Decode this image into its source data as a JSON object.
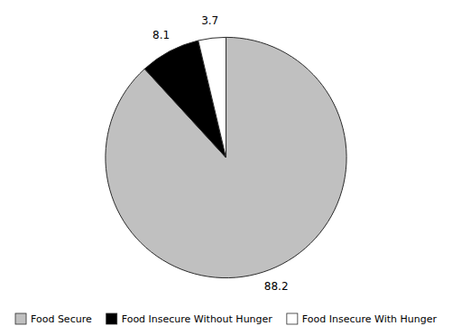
{
  "chart_data": {
    "type": "pie",
    "categories": [
      "Food Secure",
      "Food Insecure Without Hunger",
      "Food Insecure With Hunger"
    ],
    "values": [
      88.2,
      8.1,
      3.7
    ],
    "colors": [
      "#c0c0c0",
      "#000000",
      "#ffffff"
    ],
    "data_labels": true,
    "legend": "bottom"
  }
}
